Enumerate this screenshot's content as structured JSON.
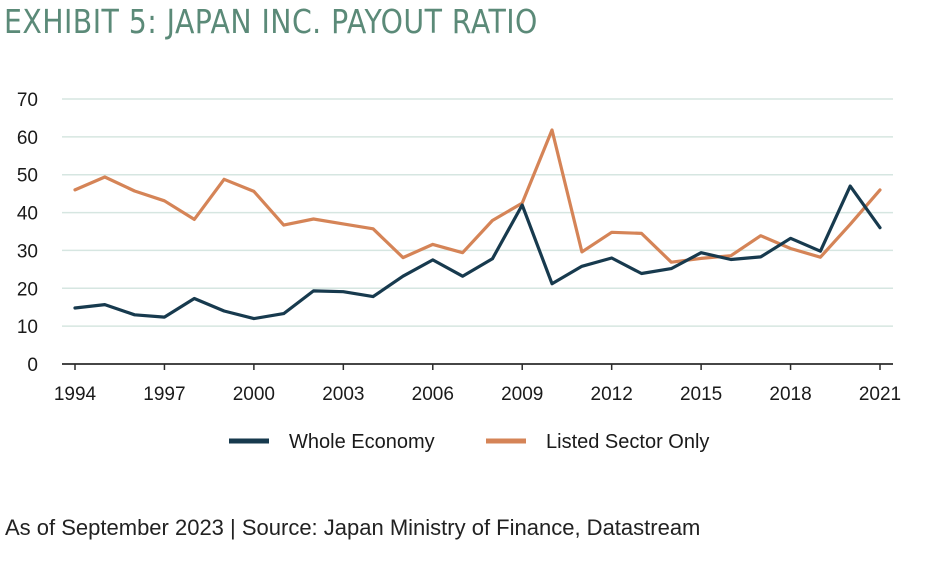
{
  "title": "EXHIBIT 5: JAPAN INC. PAYOUT RATIO",
  "footnote": "As of September 2023 | Source: Japan Ministry of Finance, Datastream",
  "colors": {
    "whole_economy": "#173a4e",
    "listed_sector": "#d58457",
    "grid": "#d6e6e1",
    "axis": "#2b2b2b"
  },
  "chart_data": {
    "type": "line",
    "title": "",
    "xlabel": "",
    "ylabel": "",
    "ylim": [
      0,
      70
    ],
    "xlim": [
      1994,
      2021
    ],
    "yticks": [
      "0",
      "10",
      "20",
      "30",
      "40",
      "50",
      "60",
      "70"
    ],
    "xticks": [
      "1994",
      "1997",
      "2000",
      "2003",
      "2006",
      "2009",
      "2012",
      "2015",
      "2018",
      "2021"
    ],
    "grid": true,
    "legend_position": "bottom",
    "x": [
      1994,
      1995,
      1996,
      1997,
      1998,
      1999,
      2000,
      2001,
      2002,
      2003,
      2004,
      2005,
      2006,
      2007,
      2008,
      2009,
      2010,
      2011,
      2012,
      2013,
      2014,
      2015,
      2016,
      2017,
      2018,
      2019,
      2020,
      2021
    ],
    "series": [
      {
        "name": "Whole Economy",
        "values": [
          14.8,
          15.7,
          13.0,
          12.4,
          17.3,
          14.0,
          12.0,
          13.3,
          19.3,
          19.1,
          17.8,
          23.2,
          27.5,
          23.2,
          27.8,
          42.0,
          21.2,
          25.8,
          28.0,
          23.9,
          25.2,
          29.4,
          27.6,
          28.3,
          33.2,
          29.8,
          47.0,
          36.0
        ]
      },
      {
        "name": "Listed Sector Only",
        "values": [
          46.0,
          49.4,
          45.7,
          43.1,
          38.2,
          48.8,
          45.6,
          36.7,
          38.3,
          37.0,
          35.7,
          28.1,
          31.6,
          29.4,
          37.9,
          42.5,
          61.8,
          29.6,
          34.8,
          34.5,
          26.9,
          27.9,
          28.6,
          33.9,
          30.5,
          28.2,
          36.9,
          46.0
        ]
      }
    ]
  }
}
